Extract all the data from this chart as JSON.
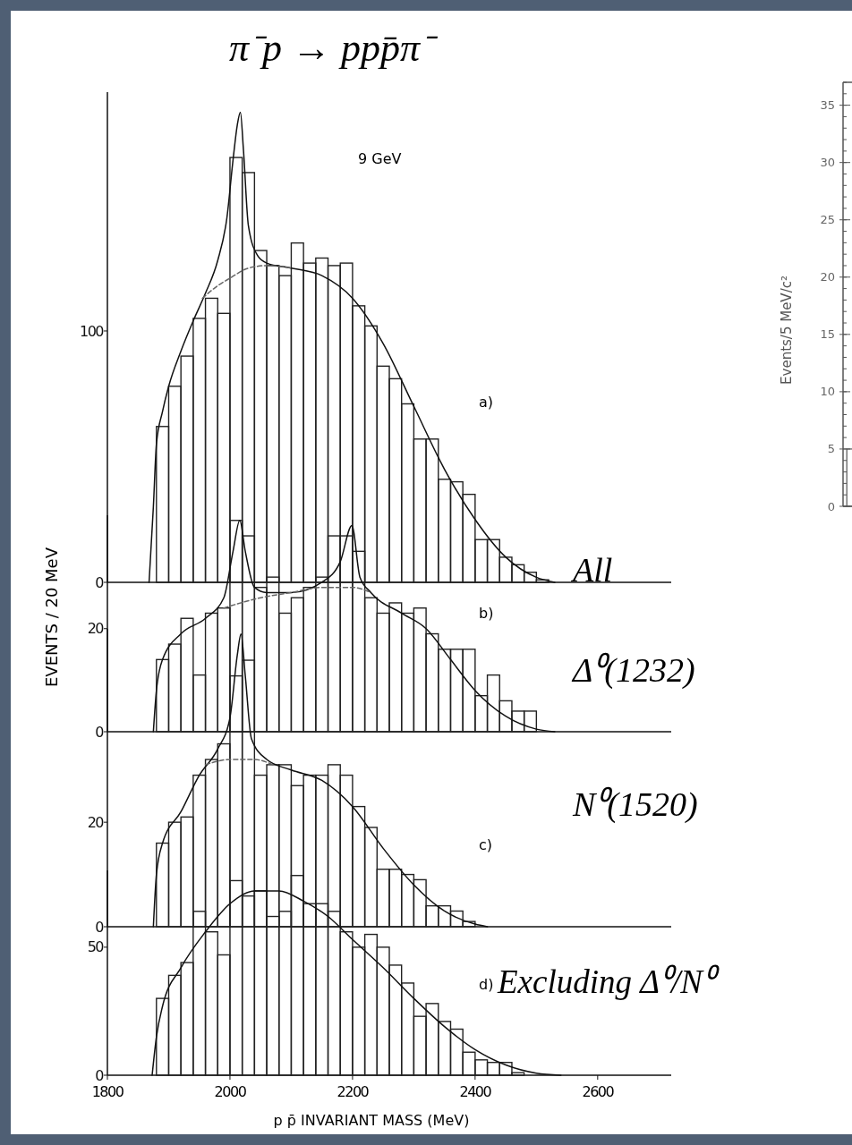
{
  "chart_data": [
    {
      "type": "histogram",
      "title": "π⁻p → ppp̄π⁻",
      "ylabel": "EVENTS / 20 MeV",
      "bins": [
        1880,
        1900,
        1920,
        1940,
        1960,
        1980,
        2000,
        2020,
        2040,
        2060,
        2080,
        2100,
        2120,
        2140,
        2160,
        2180,
        2200,
        2220,
        2240,
        2260,
        2280,
        2300,
        2320,
        2340,
        2360,
        2380,
        2400,
        2420,
        2440,
        2460,
        2480,
        2500,
        2520
      ],
      "values": [
        62,
        78,
        90,
        105,
        113,
        107,
        169,
        163,
        132,
        126,
        122,
        135,
        127,
        129,
        126,
        127,
        110,
        102,
        86,
        81,
        71,
        57,
        57,
        41,
        40,
        35,
        17,
        17,
        10,
        7,
        4,
        1
      ],
      "color": "#222222",
      "series": [
        {
          "type": "line",
          "x": [
            1868,
            1875,
            1880,
            1890,
            1900,
            1920,
            1940,
            1960,
            1980,
            1995,
            2005,
            2012,
            2017,
            2022,
            2030,
            2045,
            2060,
            2100,
            2150,
            2200,
            2250,
            2300,
            2350,
            2400,
            2450,
            2500,
            2530
          ],
          "values": [
            0,
            30,
            55,
            68,
            78,
            92,
            104,
            115,
            128,
            145,
            168,
            182,
            187,
            172,
            142,
            130,
            127,
            125,
            122,
            113,
            95,
            70,
            45,
            25,
            10,
            2,
            0
          ],
          "color": "#111111"
        },
        {
          "type": "line",
          "x": [
            1955,
            1980,
            2000,
            2030,
            2060,
            2100
          ],
          "values": [
            113,
            118,
            121,
            125,
            126,
            125
          ],
          "color": "#666666",
          "line_style": "dashed"
        }
      ],
      "xlim": [
        1800,
        2720
      ],
      "ylim": [
        0,
        195
      ],
      "yticks": [
        0,
        100
      ],
      "tick_labels": "y",
      "annotations": [
        "9 GeV",
        "a)",
        "All"
      ]
    },
    {
      "type": "histogram",
      "bins": [
        1880,
        1900,
        1920,
        1940,
        1960,
        1980,
        2000,
        2020,
        2040,
        2060,
        2080,
        2100,
        2120,
        2140,
        2160,
        2180,
        2200,
        2220,
        2240,
        2260,
        2280,
        2300,
        2320,
        2340,
        2360,
        2380,
        2400,
        2420,
        2440,
        2460,
        2480,
        2500
      ],
      "values": [
        14,
        17,
        22,
        11,
        23,
        24,
        41,
        38,
        28,
        30,
        23,
        26,
        28,
        30,
        38,
        38,
        35,
        26,
        23,
        25,
        23,
        24,
        19,
        16,
        16,
        16,
        7,
        11,
        6,
        4,
        4
      ],
      "color": "#222222",
      "series": [
        {
          "type": "line",
          "x": [
            1875,
            1880,
            1890,
            1920,
            1960,
            1990,
            2005,
            2016,
            2025,
            2040,
            2060,
            2100,
            2150,
            2180,
            2199,
            2212,
            2230,
            2280,
            2320,
            2360,
            2400,
            2450,
            2500,
            2530
          ],
          "values": [
            0,
            8,
            14,
            19,
            22,
            26,
            35,
            41,
            35,
            28,
            27,
            27,
            29,
            33,
            40,
            30,
            27,
            23,
            20,
            14,
            8,
            3,
            0.5,
            0
          ],
          "color": "#111111"
        },
        {
          "type": "line",
          "x": [
            1990,
            2050,
            2100,
            2150,
            2200,
            2230
          ],
          "values": [
            24,
            26,
            27,
            28,
            28,
            27
          ],
          "color": "#666666",
          "line_style": "dashed"
        }
      ],
      "xlim": [
        1800,
        2720
      ],
      "ylim": [
        0,
        42
      ],
      "yticks": [
        0,
        20
      ],
      "tick_labels": "y",
      "annotations": [
        "b)",
        "Δ⁰(1232)"
      ]
    },
    {
      "type": "histogram",
      "bins": [
        1880,
        1900,
        1920,
        1940,
        1960,
        1980,
        2000,
        2020,
        2040,
        2060,
        2080,
        2100,
        2120,
        2140,
        2160,
        2180,
        2200,
        2220,
        2240,
        2260,
        2280,
        2300,
        2320,
        2340,
        2360,
        2380,
        2400
      ],
      "values": [
        16,
        20,
        21,
        29,
        32,
        35,
        48,
        51,
        29,
        31,
        31,
        27,
        29,
        29,
        31,
        29,
        23,
        19,
        11,
        11,
        10,
        9,
        4,
        4,
        3,
        1
      ],
      "color": "#222222",
      "series": [
        {
          "type": "line",
          "x": [
            1875,
            1880,
            1890,
            1920,
            1950,
            1980,
            2000,
            2012,
            2018,
            2025,
            2035,
            2060,
            2100,
            2150,
            2200,
            2250,
            2300,
            2350,
            2400,
            2420
          ],
          "values": [
            0,
            10,
            16,
            22,
            29,
            34,
            40,
            52,
            56,
            48,
            36,
            32,
            30,
            28,
            23,
            15,
            8,
            3,
            0.5,
            0
          ],
          "color": "#111111"
        },
        {
          "type": "line",
          "x": [
            1960,
            2000,
            2040,
            2070
          ],
          "values": [
            31,
            32,
            32,
            31
          ],
          "color": "#666666",
          "line_style": "dashed"
        }
      ],
      "xlim": [
        1800,
        2720
      ],
      "ylim": [
        0,
        57
      ],
      "yticks": [
        0,
        20
      ],
      "tick_labels": "y",
      "annotations": [
        "c)",
        "N⁰(1520)"
      ]
    },
    {
      "type": "histogram",
      "xlabel": "p p̄  INVARIANT MASS (MeV)",
      "bins": [
        1880,
        1900,
        1920,
        1940,
        1960,
        1980,
        2000,
        2020,
        2040,
        2060,
        2080,
        2100,
        2120,
        2140,
        2160,
        2180,
        2200,
        2220,
        2240,
        2260,
        2280,
        2300,
        2320,
        2340,
        2360,
        2380,
        2400,
        2420,
        2440,
        2460,
        2480
      ],
      "values": [
        30,
        39,
        44,
        64,
        56,
        47,
        76,
        70,
        72,
        62,
        64,
        78,
        67,
        67,
        64,
        56,
        50,
        55,
        50,
        43,
        36,
        23,
        28,
        21,
        18,
        9,
        6,
        5,
        5,
        1
      ],
      "color": "#222222",
      "series": [
        {
          "type": "line",
          "x": [
            1873,
            1880,
            1890,
            1920,
            1960,
            2000,
            2040,
            2080,
            2120,
            2160,
            2200,
            2250,
            2300,
            2350,
            2400,
            2450,
            2500,
            2540
          ],
          "values": [
            0,
            15,
            27,
            42,
            56,
            67,
            72,
            72,
            68,
            62,
            53,
            42,
            30,
            19,
            10,
            4,
            0.8,
            0
          ],
          "color": "#111111"
        }
      ],
      "xlim": [
        1800,
        2720
      ],
      "ylim": [
        0,
        80
      ],
      "xticks": [
        1800,
        2000,
        2200,
        2400,
        2600
      ],
      "yticks": [
        0,
        50
      ],
      "annotations": [
        "d)",
        "Excluding Δ⁰/N⁰"
      ]
    },
    {
      "type": "bar",
      "ylabel": "Events/5 MeV/c²",
      "categories": [
        null
      ],
      "values": [
        5
      ],
      "color": "#555555",
      "ylim": [
        0,
        37
      ],
      "yticks": [
        0,
        5,
        10,
        15,
        20,
        25,
        30,
        35
      ],
      "tick_labels": "y"
    }
  ]
}
